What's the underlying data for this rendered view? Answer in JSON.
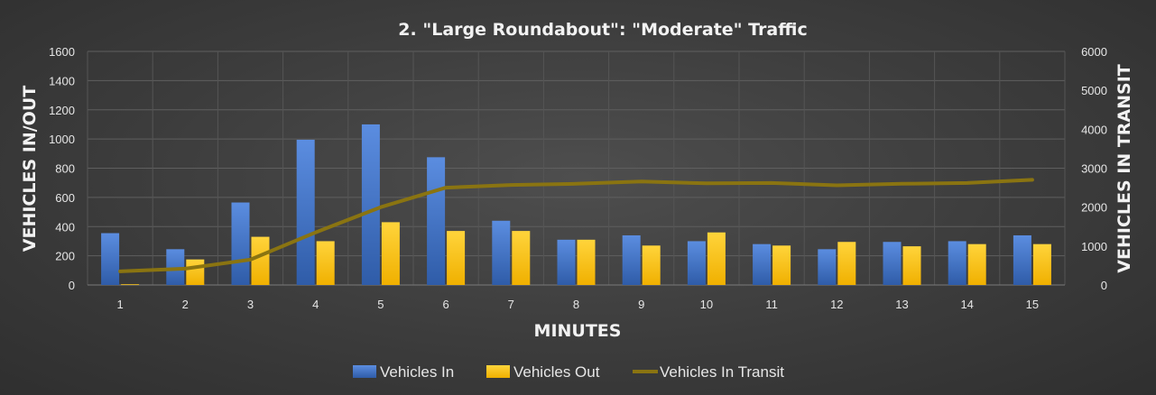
{
  "chart_data": {
    "type": "bar",
    "title": "2. \"Large Roundabout\": \"Moderate\" Traffic",
    "xlabel": "MINUTES",
    "ylabel": "VEHICLES IN/OUT",
    "y2label": "VEHICLES IN TRANSIT",
    "categories": [
      "1",
      "2",
      "3",
      "4",
      "5",
      "6",
      "7",
      "8",
      "9",
      "10",
      "11",
      "12",
      "13",
      "14",
      "15"
    ],
    "ylim": [
      0,
      1600
    ],
    "yticks": [
      0,
      200,
      400,
      600,
      800,
      1000,
      1200,
      1400,
      1600
    ],
    "y2lim": [
      0,
      6000
    ],
    "y2ticks": [
      0,
      1000,
      2000,
      3000,
      4000,
      5000,
      6000
    ],
    "grid": true,
    "legend_position": "bottom",
    "series": [
      {
        "name": "Vehicles In",
        "type": "bar",
        "axis": "left",
        "color": "#4472c4",
        "values": [
          355,
          245,
          565,
          995,
          1100,
          875,
          440,
          310,
          340,
          300,
          280,
          245,
          295,
          300,
          340
        ]
      },
      {
        "name": "Vehicles Out",
        "type": "bar",
        "axis": "left",
        "color": "#ffc000",
        "values": [
          5,
          175,
          330,
          300,
          430,
          370,
          370,
          310,
          270,
          360,
          270,
          295,
          265,
          280,
          280
        ]
      },
      {
        "name": "Vehicles In Transit",
        "type": "line",
        "axis": "right",
        "color": "#8a7411",
        "values": [
          350,
          420,
          650,
          1350,
          2000,
          2500,
          2570,
          2600,
          2660,
          2610,
          2620,
          2560,
          2600,
          2620,
          2700
        ]
      }
    ]
  }
}
